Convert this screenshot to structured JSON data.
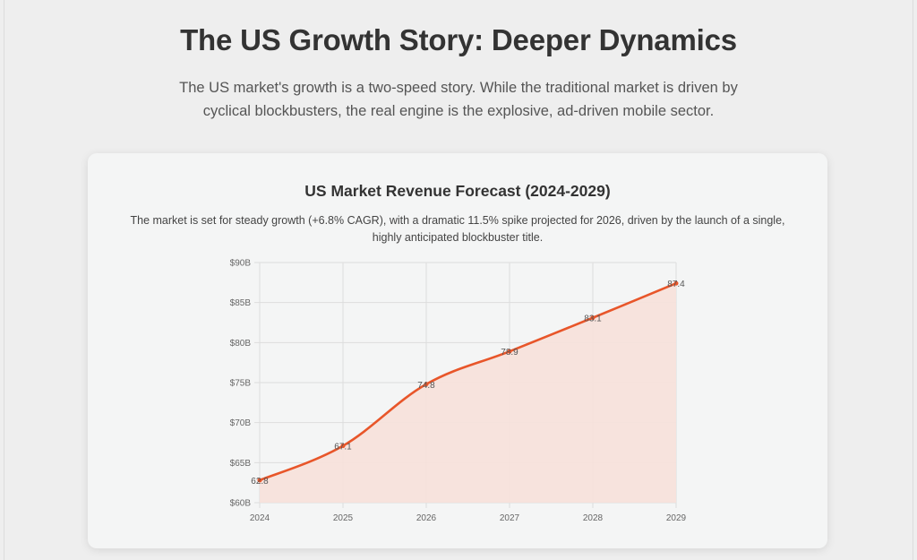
{
  "header": {
    "title": "The US Growth Story: Deeper Dynamics",
    "intro": "The US market's growth is a two-speed story. While the traditional market is driven by cyclical blockbusters, the real engine is the explosive, ad-driven mobile sector."
  },
  "card": {
    "title": "US Market Revenue Forecast (2024-2029)",
    "description": "The market is set for steady growth (+6.8% CAGR), with a dramatic 11.5% spike projected for 2026, driven by the launch of a single, highly anticipated blockbuster title."
  },
  "colors": {
    "line": "#e8562a",
    "fill": "#f7e1da",
    "grid": "#dddddd",
    "tick_text": "#666666",
    "label_text": "#555555"
  },
  "chart_data": {
    "type": "area",
    "x": [
      "2024",
      "2025",
      "2026",
      "2027",
      "2028",
      "2029"
    ],
    "series": [
      {
        "values": [
          62.8,
          67.1,
          74.8,
          78.9,
          83.1,
          87.4
        ],
        "labels": [
          "62.8",
          "67.1",
          "74.8",
          "78.9",
          "83.1",
          "87.4"
        ]
      }
    ],
    "ylim": [
      60,
      90
    ],
    "yticks": [
      60,
      65,
      70,
      75,
      80,
      85,
      90
    ],
    "ytick_labels": [
      "$60B",
      "$65B",
      "$70B",
      "$75B",
      "$80B",
      "$85B",
      "$90B"
    ],
    "grid": true,
    "legend": "none"
  }
}
